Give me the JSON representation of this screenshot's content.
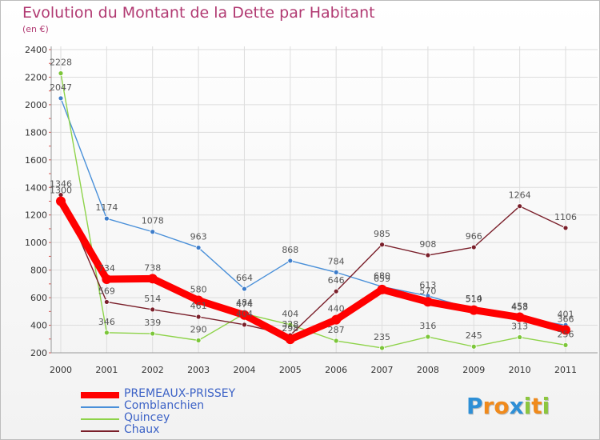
{
  "chart_data": {
    "type": "line",
    "title": "Evolution du Montant de la Dette par Habitant",
    "subtitle": "(en €)",
    "xlabel": "",
    "ylabel": "",
    "ylim": [
      200,
      2400
    ],
    "yticks": [
      200,
      400,
      600,
      800,
      1000,
      1200,
      1400,
      1600,
      1800,
      2000,
      2200,
      2400
    ],
    "x": [
      "2000",
      "2001",
      "2002",
      "2003",
      "2004",
      "2005",
      "2006",
      "2007",
      "2008",
      "2009",
      "2010",
      "2011"
    ],
    "grid": true,
    "legend_position": "bottom-left",
    "series": [
      {
        "name": "Comblanchien",
        "color": "#4a90d9",
        "marker": "#3d7cc9",
        "emphasis": false,
        "values": [
          2047,
          1174,
          1078,
          963,
          664,
          868,
          784,
          680,
          613,
          514,
          453,
          401
        ]
      },
      {
        "name": "Quincey",
        "color": "#8ed34a",
        "marker": "#7cc63a",
        "emphasis": false,
        "values": [
          2228,
          346,
          339,
          290,
          484,
          404,
          287,
          235,
          316,
          245,
          313,
          256
        ]
      },
      {
        "name": "Chaux",
        "color": "#7a1f2a",
        "marker": "#7a1f2a",
        "emphasis": false,
        "values": [
          1346,
          569,
          514,
          461,
          404,
          328,
          646,
          985,
          908,
          966,
          1264,
          1106
        ]
      },
      {
        "name": "PREMEAUX-PRISSEY",
        "color": "#ff0000",
        "marker": "#ff0000",
        "emphasis": true,
        "values": [
          1300,
          734,
          738,
          580,
          474,
          298,
          440,
          659,
          570,
          510,
          458,
          366
        ]
      }
    ],
    "legend_order": [
      "PREMEAUX-PRISSEY",
      "Comblanchien",
      "Quincey",
      "Chaux"
    ]
  },
  "logo": {
    "letters": [
      {
        "ch": "P",
        "color": "#2e8fd6"
      },
      {
        "ch": "r",
        "color": "#f08a1c"
      },
      {
        "ch": "o",
        "color": "#f08a1c"
      },
      {
        "ch": "x",
        "color": "#2e8fd6"
      },
      {
        "ch": "i",
        "color": "#8cc63e"
      },
      {
        "ch": "t",
        "color": "#f08a1c"
      },
      {
        "ch": "i",
        "color": "#8cc63e"
      }
    ]
  }
}
